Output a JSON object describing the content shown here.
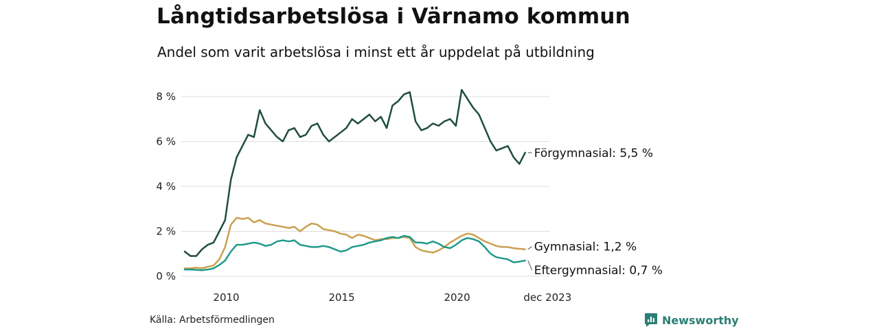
{
  "header": {
    "title": "Långtidsarbetslösa i Värnamo kommun",
    "subtitle": "Andel som varit arbetslösa i minst ett år uppdelat på utbildning"
  },
  "footer": {
    "source": "Källa: Arbetsförmedlingen",
    "brand": "Newsworthy"
  },
  "colors": {
    "forgymnasial": "#1e4d3e",
    "gymnasial": "#c9a04f",
    "eftergymnasial": "#1f9a8a",
    "grid": "#dddddd",
    "brand": "#2a7f74"
  },
  "chart_data": {
    "type": "line",
    "title": "Långtidsarbetslösa i Värnamo kommun",
    "subtitle": "Andel som varit arbetslösa i minst ett år uppdelat på utbildning",
    "x_start": 2008.2,
    "x_end": 2024.0,
    "x_step": 0.25,
    "xlim": [
      2008.17,
      2024.0
    ],
    "ylim": [
      0,
      8.7
    ],
    "y_ticks": [
      0,
      2,
      4,
      6,
      8
    ],
    "y_tick_labels": [
      "0 %",
      "2 %",
      "4 %",
      "6 %",
      "8 %"
    ],
    "x_ticks": [
      2010,
      2015,
      2020,
      2023.92
    ],
    "x_tick_labels": [
      "2010",
      "2015",
      "2020",
      "dec 2023"
    ],
    "grid": true,
    "series": [
      {
        "name": "Förgymnasial",
        "end_label": "Förgymnasial: 5,5 %",
        "color": "#1e4d3e",
        "values": [
          1.1,
          0.9,
          0.9,
          1.2,
          1.4,
          1.5,
          2.0,
          2.5,
          4.3,
          5.3,
          5.8,
          6.3,
          6.2,
          7.4,
          6.8,
          6.5,
          6.2,
          6.0,
          6.5,
          6.6,
          6.2,
          6.3,
          6.7,
          6.8,
          6.3,
          6.0,
          6.2,
          6.4,
          6.6,
          7.0,
          6.8,
          7.0,
          7.2,
          6.9,
          7.1,
          6.6,
          7.6,
          7.8,
          8.1,
          8.2,
          6.9,
          6.5,
          6.6,
          6.8,
          6.7,
          6.9,
          7.0,
          6.7,
          8.3,
          7.9,
          7.5,
          7.2,
          6.6,
          6.0,
          5.6,
          5.7,
          5.8,
          5.3,
          5.0,
          5.5
        ]
      },
      {
        "name": "Gymnasial",
        "end_label": "Gymnasial: 1,2 %",
        "color": "#c9a04f",
        "values": [
          0.35,
          0.35,
          0.38,
          0.35,
          0.42,
          0.48,
          0.75,
          1.3,
          2.3,
          2.6,
          2.55,
          2.6,
          2.4,
          2.5,
          2.35,
          2.3,
          2.25,
          2.2,
          2.15,
          2.2,
          2.0,
          2.2,
          2.35,
          2.3,
          2.1,
          2.05,
          2.0,
          1.9,
          1.85,
          1.7,
          1.85,
          1.8,
          1.7,
          1.6,
          1.65,
          1.65,
          1.7,
          1.7,
          1.75,
          1.7,
          1.3,
          1.15,
          1.1,
          1.05,
          1.15,
          1.3,
          1.5,
          1.65,
          1.8,
          1.9,
          1.85,
          1.7,
          1.55,
          1.45,
          1.35,
          1.3,
          1.3,
          1.25,
          1.22,
          1.2
        ]
      },
      {
        "name": "Eftergymnasial",
        "end_label": "Eftergymnasial: 0,7 %",
        "color": "#1f9a8a",
        "values": [
          0.3,
          0.3,
          0.28,
          0.27,
          0.3,
          0.35,
          0.5,
          0.7,
          1.1,
          1.4,
          1.4,
          1.45,
          1.5,
          1.45,
          1.35,
          1.4,
          1.55,
          1.6,
          1.55,
          1.6,
          1.4,
          1.35,
          1.3,
          1.3,
          1.35,
          1.3,
          1.2,
          1.1,
          1.15,
          1.3,
          1.35,
          1.4,
          1.5,
          1.55,
          1.6,
          1.7,
          1.75,
          1.7,
          1.8,
          1.75,
          1.5,
          1.5,
          1.45,
          1.55,
          1.45,
          1.3,
          1.25,
          1.4,
          1.6,
          1.7,
          1.65,
          1.55,
          1.3,
          1.0,
          0.85,
          0.8,
          0.75,
          0.62,
          0.65,
          0.7
        ]
      }
    ]
  }
}
